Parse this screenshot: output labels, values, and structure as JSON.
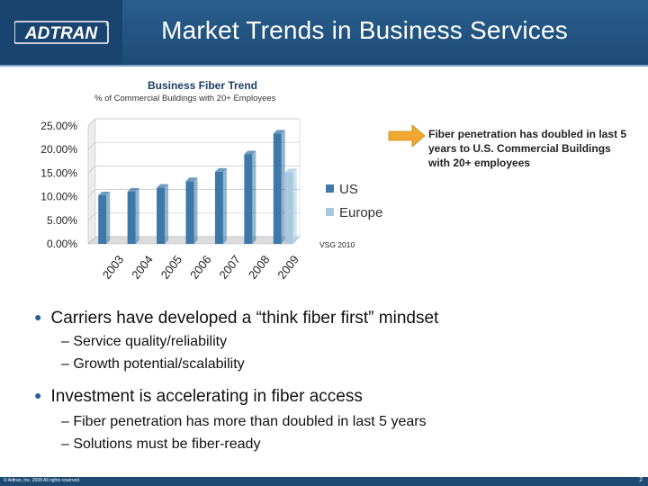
{
  "header": {
    "logo_text": "ADTRAN",
    "title": "Market Trends in Business Services"
  },
  "chart": {
    "title": "Business Fiber Trend",
    "subtitle": "% of Commercial Buildings with 20+ Employees",
    "callout": "Fiber penetration has doubled in last 5 years to U.S. Commercial Buildings with 20+ employees",
    "source": "VSG 2010"
  },
  "chart_data": {
    "type": "bar",
    "title": "Business Fiber Trend",
    "subtitle": "% of Commercial Buildings with 20+ Employees",
    "categories": [
      "2003",
      "2004",
      "2005",
      "2006",
      "2007",
      "2008",
      "2009"
    ],
    "series": [
      {
        "name": "US",
        "values": [
          10.3,
          11.1,
          11.9,
          13.3,
          15.3,
          19.0,
          23.4
        ],
        "color": "#3d78a8"
      },
      {
        "name": "Europe",
        "values": [
          null,
          null,
          null,
          null,
          null,
          null,
          15.2
        ],
        "color": "#a9c9e2"
      }
    ],
    "ylim": [
      0,
      25
    ],
    "yticks": [
      "0.00%",
      "5.00%",
      "10.00%",
      "15.00%",
      "20.00%",
      "25.00%"
    ],
    "grid": true,
    "legend_position": "right"
  },
  "bullets": [
    {
      "text": "Carriers have developed a “think fiber first” mindset",
      "subs": [
        "Service quality/reliability",
        "Growth potential/scalability"
      ]
    },
    {
      "text": "Investment is accelerating in fiber access",
      "subs": [
        "Fiber penetration has more than doubled in last 5 years",
        "Solutions must be fiber-ready"
      ]
    }
  ],
  "footer": {
    "copyright": "© Adtran, Inc. 2008 All rights reserved",
    "page": "2"
  },
  "colors": {
    "header": "#1d4a75",
    "us_bar": "#3d78a8",
    "europe_bar": "#a9c9e2",
    "callout_arrow": "#f0a830"
  }
}
